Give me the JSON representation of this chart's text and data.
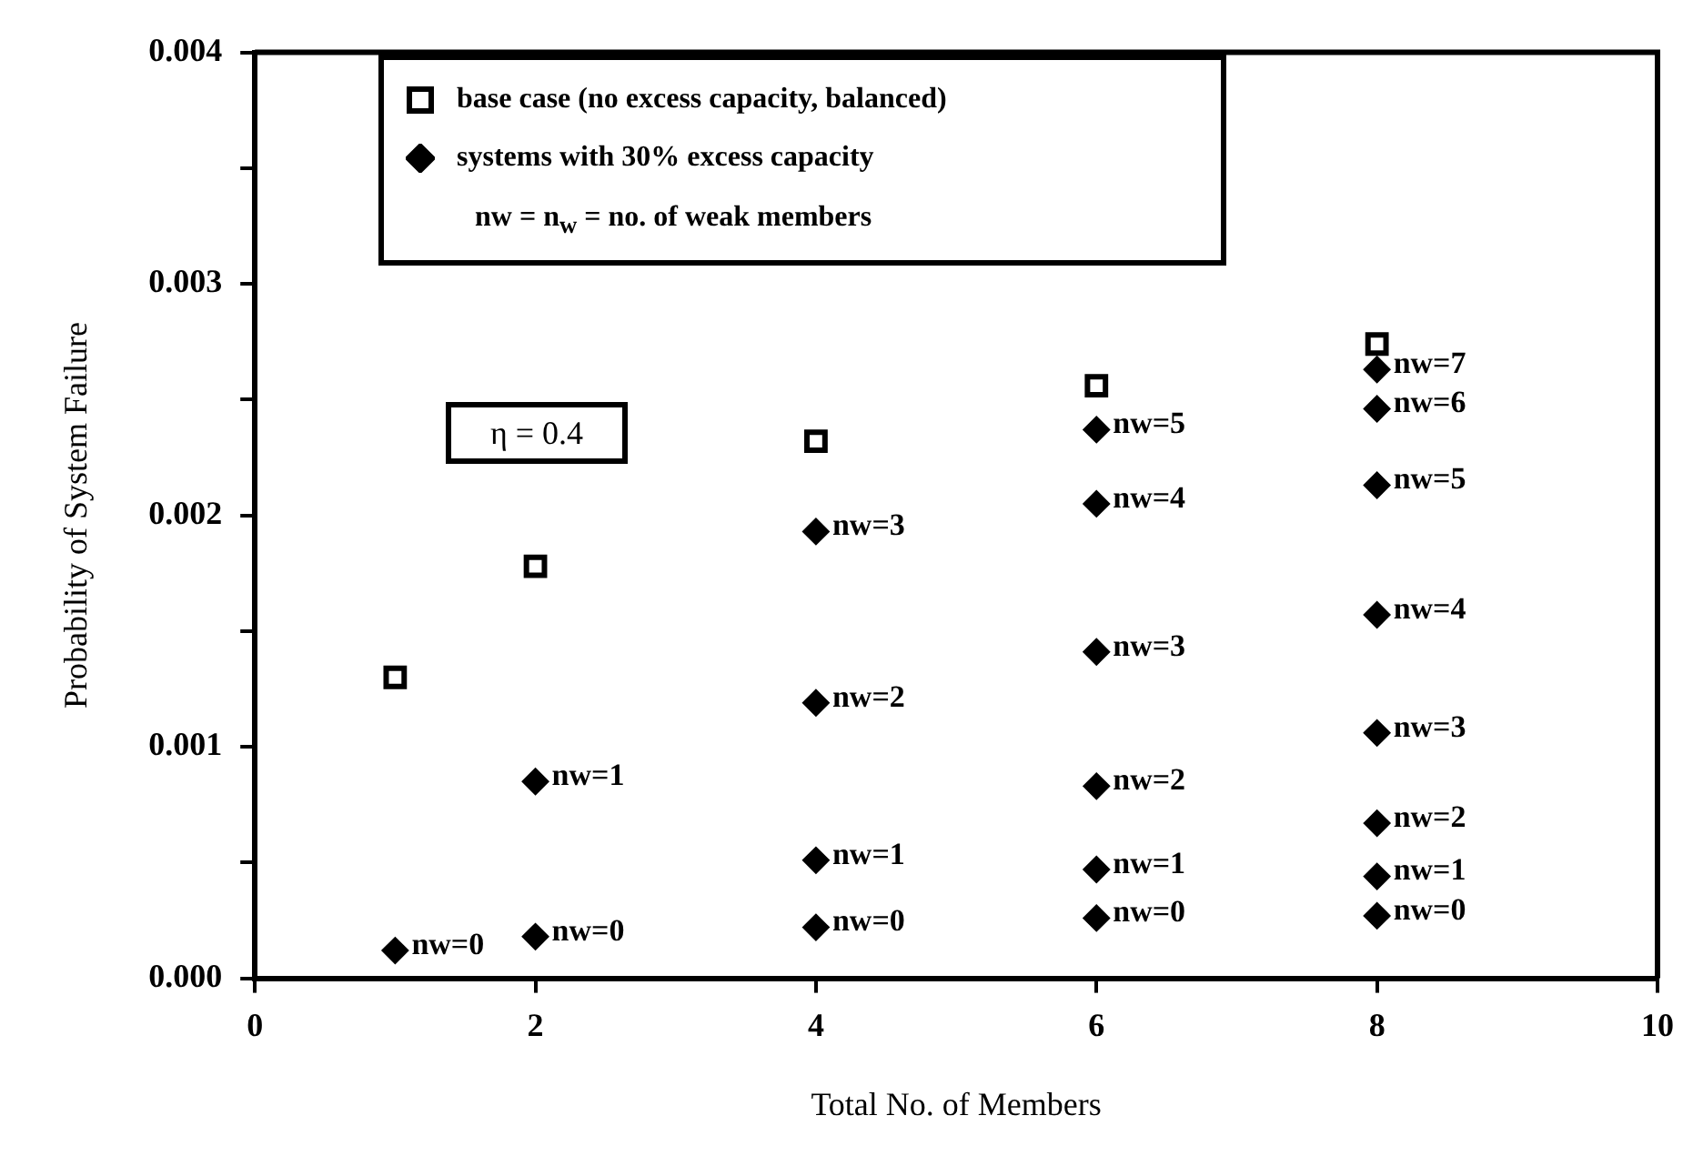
{
  "chart_data": {
    "type": "scatter",
    "xlabel": "Total No. of Members",
    "ylabel": "Probability of System Failure",
    "xlim": [
      0,
      10
    ],
    "xticks": [
      0,
      2,
      4,
      6,
      8,
      10
    ],
    "ylim": [
      0,
      0.004
    ],
    "yticks": [
      {
        "value": 0,
        "label": "0.000"
      },
      {
        "value": 0.0005,
        "label": null
      },
      0.001,
      {
        "value": 0.0015,
        "label": null
      },
      0.002,
      {
        "value": 0.0025,
        "label": null
      },
      0.003,
      {
        "value": 0.0035,
        "label": null
      },
      0.004
    ],
    "grid": false,
    "legend": "top left",
    "series": [
      {
        "name": "base case (no excess capacity, balanced)",
        "color": "#000000",
        "marker": "square",
        "x": [
          1,
          2,
          4,
          6,
          8
        ],
        "values": [
          0.0013,
          0.00178,
          0.00232,
          0.00256,
          0.00274
        ]
      },
      {
        "name": "systems with 30% excess capacity",
        "color": "#000000",
        "marker": "diamond",
        "x": [
          1,
          2,
          2,
          4,
          4,
          4,
          4,
          6,
          6,
          6,
          6,
          6,
          6,
          8,
          8,
          8,
          8,
          8,
          8,
          8,
          8
        ],
        "values": [
          0.00012,
          0.00018,
          0.00085,
          0.00022,
          0.00051,
          0.00119,
          0.00193,
          0.00026,
          0.00047,
          0.00083,
          0.00141,
          0.00205,
          0.00237,
          0.00027,
          0.00044,
          0.00067,
          0.00106,
          0.00157,
          0.00213,
          0.00246,
          0.00263
        ]
      }
    ],
    "annotations": [
      "nw = n$_{w}$ = no. of weak members",
      "η = 0.4",
      {
        "text": "nw=0",
        "x": 1,
        "y": 0.00012
      },
      {
        "text": "nw=0",
        "x": 2,
        "y": 0.00018
      },
      {
        "text": "nw=1",
        "x": 2,
        "y": 0.00085
      },
      {
        "text": "nw=0",
        "x": 4,
        "y": 0.00022
      },
      {
        "text": "nw=1",
        "x": 4,
        "y": 0.00051
      },
      {
        "text": "nw=2",
        "x": 4,
        "y": 0.00119
      },
      {
        "text": "nw=3",
        "x": 4,
        "y": 0.00193
      },
      {
        "text": "nw=0",
        "x": 6,
        "y": 0.00026
      },
      {
        "text": "nw=1",
        "x": 6,
        "y": 0.00047
      },
      {
        "text": "nw=2",
        "x": 6,
        "y": 0.00083
      },
      {
        "text": "nw=3",
        "x": 6,
        "y": 0.00141
      },
      {
        "text": "nw=4",
        "x": 6,
        "y": 0.00205
      },
      {
        "text": "nw=5",
        "x": 6,
        "y": 0.00237
      },
      {
        "text": "nw=0",
        "x": 8,
        "y": 0.00027
      },
      {
        "text": "nw=1",
        "x": 8,
        "y": 0.00044
      },
      {
        "text": "nw=2",
        "x": 8,
        "y": 0.00067
      },
      {
        "text": "nw=3",
        "x": 8,
        "y": 0.00106
      },
      {
        "text": "nw=4",
        "x": 8,
        "y": 0.00157
      },
      {
        "text": "nw=5",
        "x": 8,
        "y": 0.00213
      },
      {
        "text": "nw=6",
        "x": 8,
        "y": 0.00246
      },
      {
        "text": "nw=7",
        "x": 8,
        "y": 0.00263
      }
    ]
  }
}
